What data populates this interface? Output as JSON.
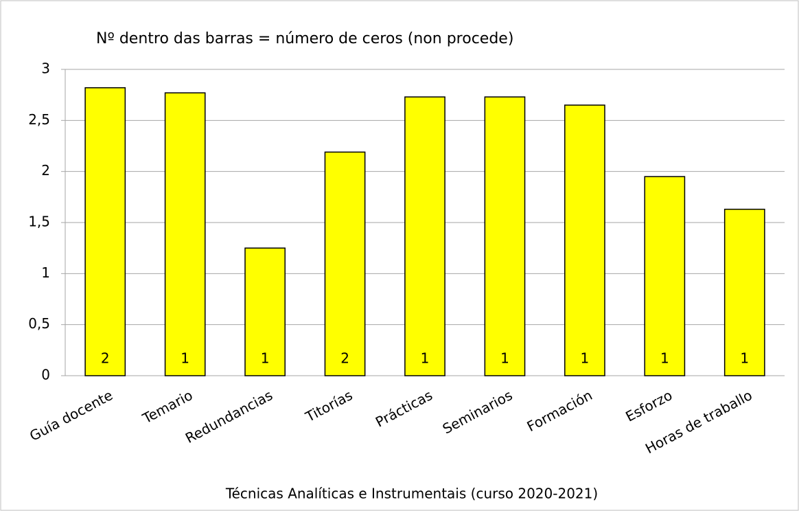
{
  "chart_data": {
    "type": "bar",
    "title": "Nº dentro das barras = número de ceros (non procede)",
    "x_label": "Técnicas Analíticas e Instrumentais (curso 2020-2021)",
    "categories": [
      "Guía docente",
      "Temario",
      "Redundancias",
      "Titorías",
      "Prácticas",
      "Seminarios",
      "Formación",
      "Esforzo",
      "Horas de traballo"
    ],
    "values": [
      2.82,
      2.77,
      1.25,
      2.19,
      2.73,
      2.73,
      2.65,
      1.95,
      1.63
    ],
    "bar_labels": [
      2,
      1,
      1,
      2,
      1,
      1,
      1,
      1,
      1
    ],
    "color": "#ffff00",
    "ylim": [
      0,
      3
    ],
    "yticks": [
      0,
      {
        "value": 0.5,
        "label": "0,5"
      },
      1,
      {
        "value": 1.5,
        "label": "1,5"
      },
      2,
      {
        "value": 2.5,
        "label": "2,5"
      },
      3
    ],
    "grid": true
  }
}
